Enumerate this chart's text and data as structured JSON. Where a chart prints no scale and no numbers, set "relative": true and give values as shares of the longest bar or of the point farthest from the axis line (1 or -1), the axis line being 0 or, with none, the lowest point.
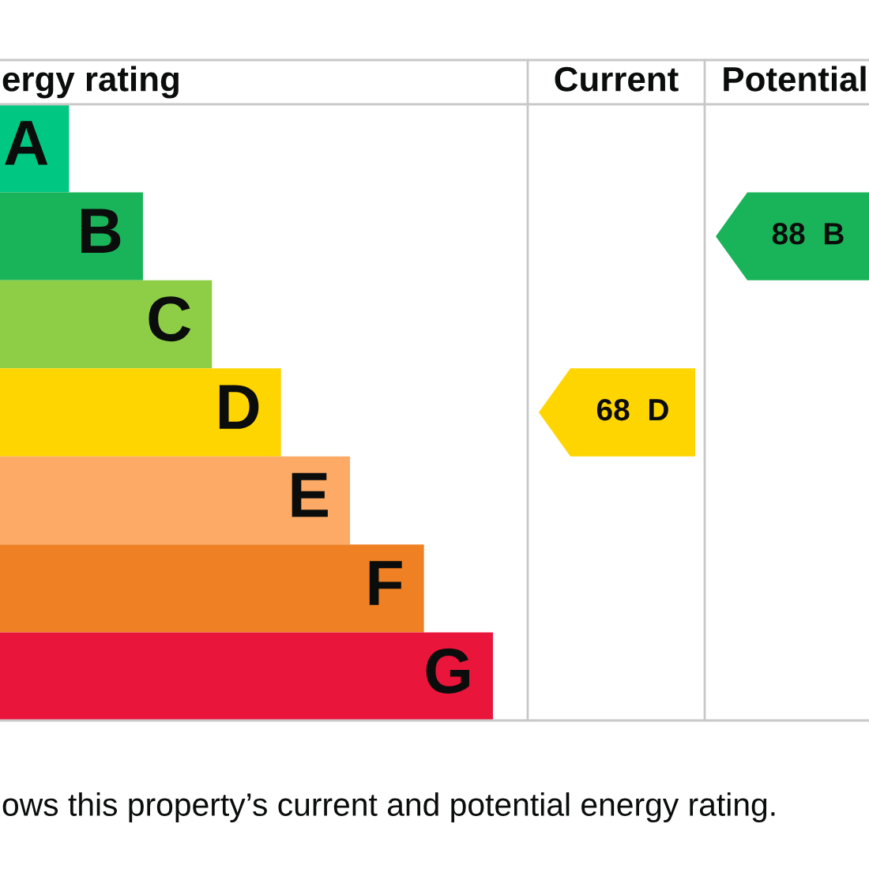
{
  "chart_data": [
    {
      "type": "bar",
      "orientation": "horizontal",
      "relative": true,
      "title": "ergy rating",
      "categories": [
        "A",
        "B",
        "C",
        "D",
        "E",
        "F",
        "G"
      ],
      "values": [
        0.14,
        0.29,
        0.43,
        0.57,
        0.71,
        0.86,
        1
      ],
      "colors": [
        "#00c781",
        "#19b459",
        "#8dce46",
        "#ffd500",
        "#fcaa65",
        "#ef8023",
        "#e9153b"
      ],
      "annotations": [
        "ows this property’s current and potential energy rating."
      ]
    },
    {
      "type": "bar",
      "orientation": "horizontal",
      "title": "Current",
      "categories": [
        null,
        null,
        null,
        null,
        null,
        null,
        null
      ],
      "values": [
        null,
        null,
        null,
        68,
        null,
        null,
        null
      ],
      "color": "#ffd500",
      "value_labels": [
        null,
        null,
        null,
        "68  D",
        null,
        null,
        null
      ]
    },
    {
      "type": "bar",
      "orientation": "horizontal",
      "title": "Potential",
      "categories": [
        null,
        null,
        null,
        null,
        null,
        null,
        null
      ],
      "values": [
        null,
        88,
        null,
        null,
        null,
        null,
        null
      ],
      "color": "#19b459",
      "value_labels": [
        null,
        "88  B",
        null,
        null,
        null,
        null,
        null
      ]
    }
  ]
}
